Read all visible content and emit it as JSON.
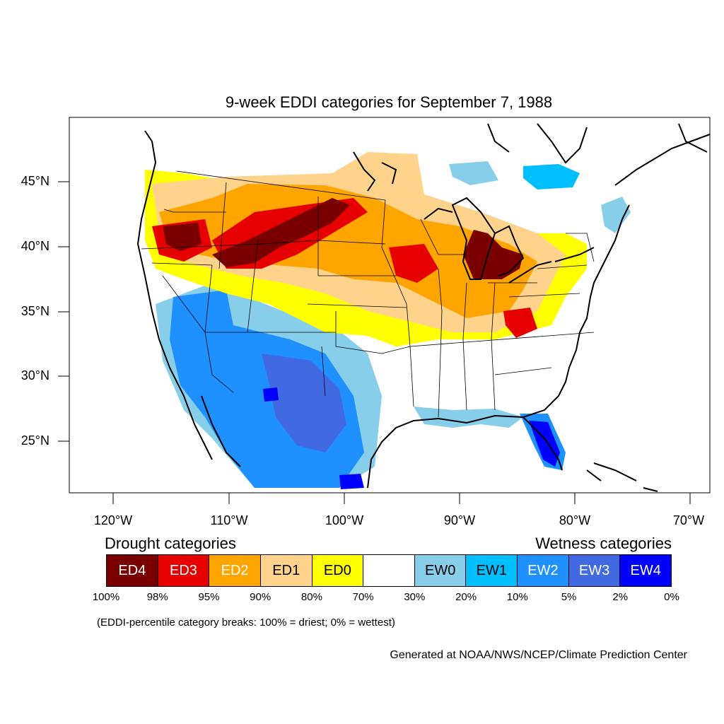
{
  "title": "9-week EDDI categories for September 7, 1988",
  "lat_labels": [
    "45°N",
    "40°N",
    "35°N",
    "30°N",
    "25°N"
  ],
  "lon_labels": [
    "120°W",
    "110°W",
    "100°W",
    "90°W",
    "80°W",
    "70°W"
  ],
  "legend": {
    "drought_title": "Drought categories",
    "wetness_title": "Wetness categories",
    "categories": [
      {
        "label": "ED4",
        "color": "#7a0000",
        "text_color": "#ffffff"
      },
      {
        "label": "ED3",
        "color": "#e60000",
        "text_color": "#ffffff"
      },
      {
        "label": "ED2",
        "color": "#ffa500",
        "text_color": "#ffffff"
      },
      {
        "label": "ED1",
        "color": "#ffd38c",
        "text_color": "#000000"
      },
      {
        "label": "ED0",
        "color": "#ffff00",
        "text_color": "#000000"
      },
      {
        "label": "",
        "color": "#ffffff",
        "text_color": "#000000"
      },
      {
        "label": "EW0",
        "color": "#87ceeb",
        "text_color": "#000000"
      },
      {
        "label": "EW1",
        "color": "#00bfff",
        "text_color": "#000000"
      },
      {
        "label": "EW2",
        "color": "#1e90ff",
        "text_color": "#ffffff"
      },
      {
        "label": "EW3",
        "color": "#4169e1",
        "text_color": "#ffffff"
      },
      {
        "label": "EW4",
        "color": "#0000ff",
        "text_color": "#ffffff"
      }
    ],
    "breaks": [
      "100%",
      "98%",
      "95%",
      "90%",
      "80%",
      "70%",
      "30%",
      "20%",
      "10%",
      "5%",
      "2%",
      "0%"
    ]
  },
  "note": "(EDDI-percentile category breaks: 100% = driest; 0% = wettest)",
  "credit": "Generated at NOAA/NWS/NCEP/Climate Prediction Center"
}
